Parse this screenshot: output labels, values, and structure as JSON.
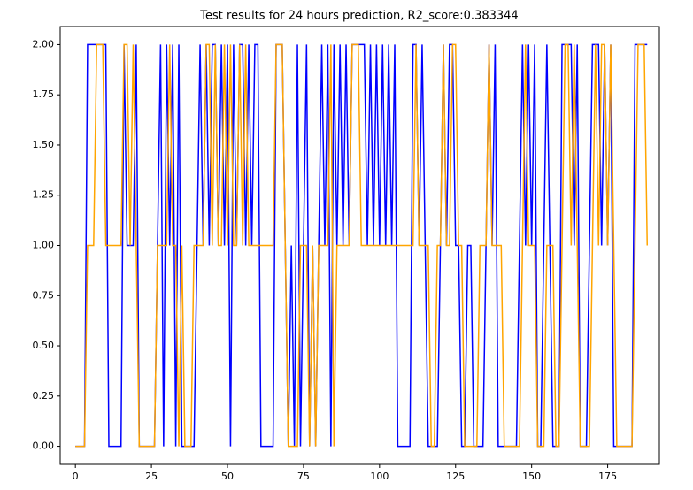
{
  "chart_data": {
    "type": "line",
    "title": "Test results for 24 hours prediction, R2_score:0.383344",
    "xlim": [
      -5,
      192
    ],
    "ylim": [
      -0.09,
      2.09
    ],
    "xticks": [
      0,
      25,
      50,
      75,
      100,
      125,
      150,
      175
    ],
    "yticks": [
      {
        "value": 0,
        "label": "0.00"
      },
      {
        "value": 0.25,
        "label": "0.25"
      },
      {
        "value": 0.5,
        "label": "0.50"
      },
      {
        "value": 0.75,
        "label": "0.75"
      },
      {
        "value": 1,
        "label": "1.00"
      },
      {
        "value": 1.25,
        "label": "1.25"
      },
      {
        "value": 1.5,
        "label": "1.50"
      },
      {
        "value": 1.75,
        "label": "1.75"
      },
      {
        "value": 2,
        "label": "2.00"
      }
    ],
    "grid": false,
    "series": [
      {
        "color": "#0000ff",
        "values": [
          0,
          0,
          0,
          0,
          2,
          2,
          2,
          2,
          2,
          2,
          2,
          0,
          0,
          0,
          0,
          0,
          2,
          1,
          1,
          1,
          2,
          0,
          0,
          0,
          0,
          0,
          0,
          1,
          2,
          0,
          2,
          1,
          2,
          0,
          2,
          0,
          0,
          0,
          0,
          0,
          1,
          2,
          1,
          2,
          1,
          2,
          2,
          1,
          2,
          1,
          2,
          0,
          2,
          1,
          2,
          2,
          1,
          2,
          1,
          2,
          2,
          0,
          0,
          0,
          0,
          0,
          2,
          2,
          2,
          1,
          0,
          1,
          0,
          2,
          0,
          1,
          2,
          0,
          1,
          0,
          1,
          2,
          1,
          2,
          0,
          2,
          1,
          2,
          1,
          2,
          1,
          2,
          2,
          2,
          2,
          2,
          1,
          2,
          1,
          2,
          1,
          2,
          1,
          2,
          1,
          2,
          0,
          0,
          0,
          0,
          0,
          2,
          2,
          1,
          2,
          1,
          0,
          0,
          0,
          0,
          1,
          2,
          1,
          2,
          2,
          1,
          1,
          0,
          0,
          1,
          1,
          0,
          0,
          0,
          0,
          1,
          2,
          1,
          2,
          0,
          0,
          0,
          0,
          0,
          0,
          0,
          1,
          2,
          1,
          2,
          1,
          2,
          0,
          0,
          1,
          2,
          1,
          0,
          0,
          0,
          2,
          2,
          2,
          2,
          1,
          2,
          0,
          0,
          0,
          1,
          2,
          2,
          2,
          1,
          2,
          1,
          2,
          0,
          0,
          0,
          0,
          0,
          0,
          0,
          2,
          2,
          2,
          2,
          2
        ]
      },
      {
        "color": "#ffa500",
        "values": [
          0,
          0,
          0,
          0,
          1,
          1,
          1,
          2,
          2,
          2,
          1,
          1,
          1,
          1,
          1,
          1,
          2,
          2,
          1,
          2,
          1,
          0,
          0,
          0,
          0,
          0,
          0,
          1,
          1,
          1,
          1,
          2,
          1,
          1,
          0,
          1,
          0,
          0,
          0,
          1,
          1,
          1,
          1,
          2,
          2,
          1,
          2,
          1,
          1,
          2,
          1,
          2,
          1,
          1,
          2,
          1,
          2,
          1,
          1,
          1,
          1,
          1,
          1,
          1,
          1,
          1,
          2,
          2,
          2,
          1,
          0,
          0,
          0,
          0,
          1,
          1,
          1,
          0,
          1,
          0,
          1,
          1,
          1,
          1,
          2,
          0,
          1,
          1,
          1,
          1,
          1,
          2,
          2,
          2,
          1,
          1,
          1,
          1,
          1,
          1,
          1,
          1,
          1,
          1,
          1,
          1,
          1,
          1,
          1,
          1,
          1,
          1,
          2,
          1,
          1,
          1,
          1,
          0,
          0,
          1,
          1,
          2,
          1,
          1,
          2,
          2,
          1,
          1,
          0,
          0,
          0,
          0,
          0,
          1,
          1,
          1,
          2,
          1,
          1,
          1,
          1,
          0,
          0,
          0,
          0,
          0,
          0,
          1,
          2,
          1,
          1,
          1,
          0,
          0,
          0,
          1,
          1,
          1,
          0,
          0,
          1,
          2,
          2,
          1,
          2,
          1,
          0,
          0,
          0,
          0,
          1,
          2,
          1,
          2,
          2,
          1,
          2,
          1,
          0,
          0,
          0,
          0,
          0,
          0,
          1,
          2,
          2,
          2,
          1
        ]
      }
    ]
  }
}
